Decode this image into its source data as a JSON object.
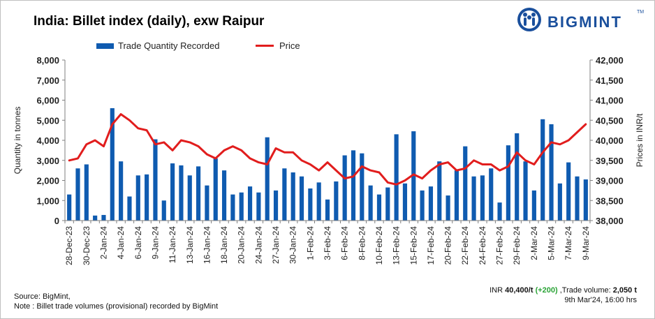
{
  "title": "India: Billet index (daily), exw Raipur",
  "brand": {
    "name": "BIGMINT",
    "trademark": "TM",
    "color": "#1a4f9c"
  },
  "legend": {
    "bar_label": "Trade Quantity Recorded",
    "line_label": "Price"
  },
  "footer": {
    "source": "Source: BigMint,",
    "note": "Note : Billet trade volumes (provisional) recorded by BigMint",
    "price_prefix": "INR ",
    "price_value": "40,400/t",
    "price_change": "(+200)",
    "volume_prefix": " ,Trade volume: ",
    "volume_value": "2,050 t",
    "timestamp": "9th Mar'24, 16:00 hrs"
  },
  "chart_data": {
    "type": "bar",
    "title": "India: Billet index (daily), exw Raipur",
    "bar_color": "#0f5bb0",
    "line_color": "#e11d1d",
    "ylabel_left": "Quantity in tonnes",
    "ylabel_right": "Prices in INR/t",
    "ylim_left": [
      0,
      8000
    ],
    "ylim_right": [
      38000,
      42000
    ],
    "yticks_left": [
      "0",
      "1,000",
      "2,000",
      "3,000",
      "4,000",
      "5,000",
      "6,000",
      "7,000",
      "8,000"
    ],
    "yticks_right": [
      "38,000",
      "38,500",
      "39,000",
      "39,500",
      "40,000",
      "40,500",
      "41,000",
      "41,500",
      "42,000"
    ],
    "legend_position": "top",
    "grid": false,
    "x_tick_labels": [
      "28-Dec-23",
      "30-Dec-23",
      "2-Jan-24",
      "4-Jan-24",
      "6-Jan-24",
      "9-Jan-24",
      "11-Jan-24",
      "13-Jan-24",
      "16-Jan-24",
      "18-Jan-24",
      "20-Jan-24",
      "24-Jan-24",
      "27-Jan-24",
      "30-Jan-24",
      "1-Feb-24",
      "3-Feb-24",
      "6-Feb-24",
      "8-Feb-24",
      "10-Feb-24",
      "13-Feb-24",
      "15-Feb-24",
      "17-Feb-24",
      "20-Feb-24",
      "22-Feb-24",
      "24-Feb-24",
      "27-Feb-24",
      "29-Feb-24",
      "2-Mar-24",
      "5-Mar-24",
      "7-Mar-24",
      "9-Mar-24"
    ],
    "series": [
      {
        "name": "Trade Quantity Recorded",
        "type": "bar",
        "values": [
          1300,
          2600,
          2800,
          250,
          280,
          5600,
          2950,
          1200,
          2250,
          2300,
          4050,
          1000,
          2850,
          2750,
          2250,
          2700,
          1750,
          3100,
          2500,
          1300,
          1400,
          1700,
          1400,
          4150,
          1500,
          2600,
          2400,
          2200,
          1600,
          1900,
          1050,
          1950,
          3250,
          3500,
          3350,
          1750,
          1300,
          1650,
          4300,
          1850,
          4450,
          1500,
          1700,
          2950,
          1250,
          2500,
          3700,
          2200,
          2250,
          2600,
          900,
          3750,
          4350,
          2950,
          1500,
          5050,
          4800,
          1850,
          2900,
          2200,
          2050
        ]
      },
      {
        "name": "Price",
        "type": "line",
        "values": [
          39500,
          39550,
          39900,
          40000,
          39850,
          40400,
          40650,
          40500,
          40300,
          40250,
          39900,
          39950,
          39750,
          40000,
          39950,
          39850,
          39650,
          39550,
          39750,
          39850,
          39750,
          39550,
          39450,
          39400,
          39800,
          39700,
          39700,
          39500,
          39400,
          39250,
          39450,
          39250,
          39050,
          39100,
          39350,
          39250,
          39200,
          38950,
          38900,
          39000,
          39150,
          39050,
          39250,
          39400,
          39450,
          39250,
          39300,
          39500,
          39400,
          39400,
          39250,
          39350,
          39700,
          39500,
          39400,
          39700,
          39950,
          39900,
          40000,
          40200,
          40400
        ]
      }
    ]
  }
}
